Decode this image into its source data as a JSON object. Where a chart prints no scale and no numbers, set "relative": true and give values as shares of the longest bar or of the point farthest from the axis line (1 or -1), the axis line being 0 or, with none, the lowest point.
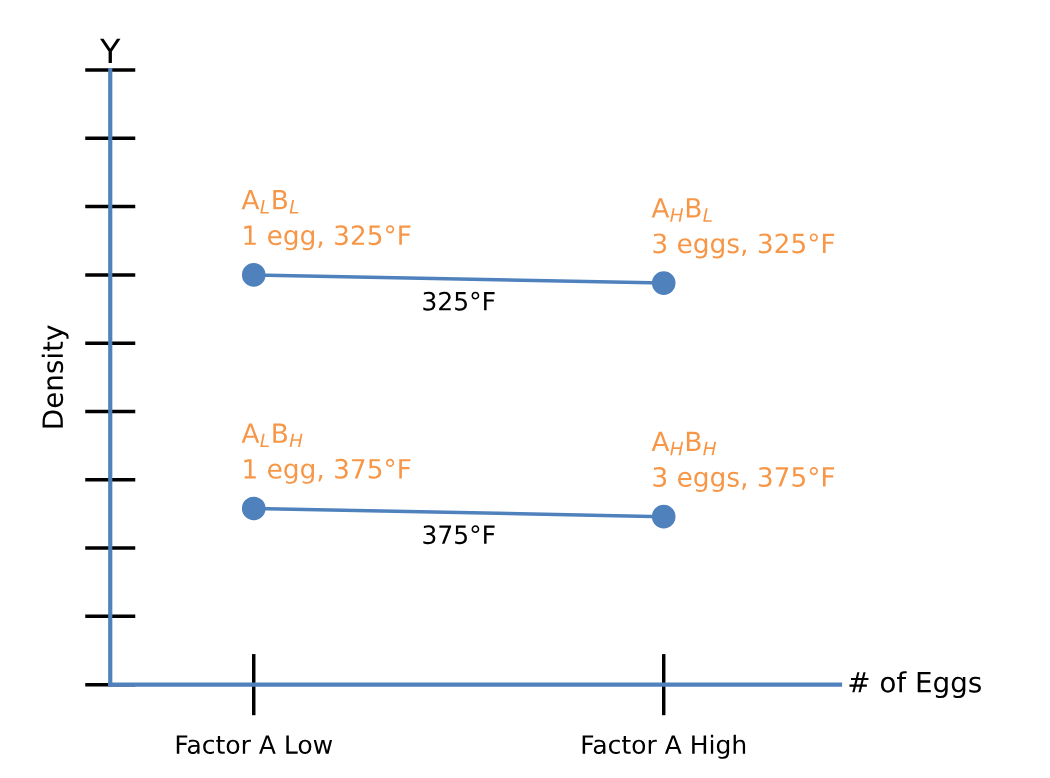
{
  "chart_data": {
    "type": "line",
    "relative": true,
    "ylabel": "Density",
    "xlabel": "# of Eggs",
    "categories": [
      "Factor A Low",
      "Factor A High"
    ],
    "series": [
      {
        "name": "325°F",
        "color": "#4f81bd",
        "values": [
          1,
          0.98
        ]
      },
      {
        "name": "375°F",
        "color": "#4f81bd",
        "values": [
          0.43,
          0.41
        ]
      }
    ],
    "marker": "circle",
    "line_style": "solid",
    "annotations": [
      "Y",
      {
        "text": "A$_{L}$B$_{L}$\n1 egg, 325°F",
        "x": "Factor A Low",
        "y": 1
      },
      {
        "text": "A$_{H}$B$_{L}$\n3 eggs, 325°F",
        "x": "Factor A High",
        "y": 0.98
      },
      {
        "text": "A$_{L}$B$_{H}$\n1 egg, 375°F",
        "x": "Factor A Low",
        "y": 0.43
      },
      {
        "text": "A$_{H}$B$_{H}$\n3 eggs, 375°F",
        "x": "Factor A High",
        "y": 0.41
      }
    ]
  }
}
